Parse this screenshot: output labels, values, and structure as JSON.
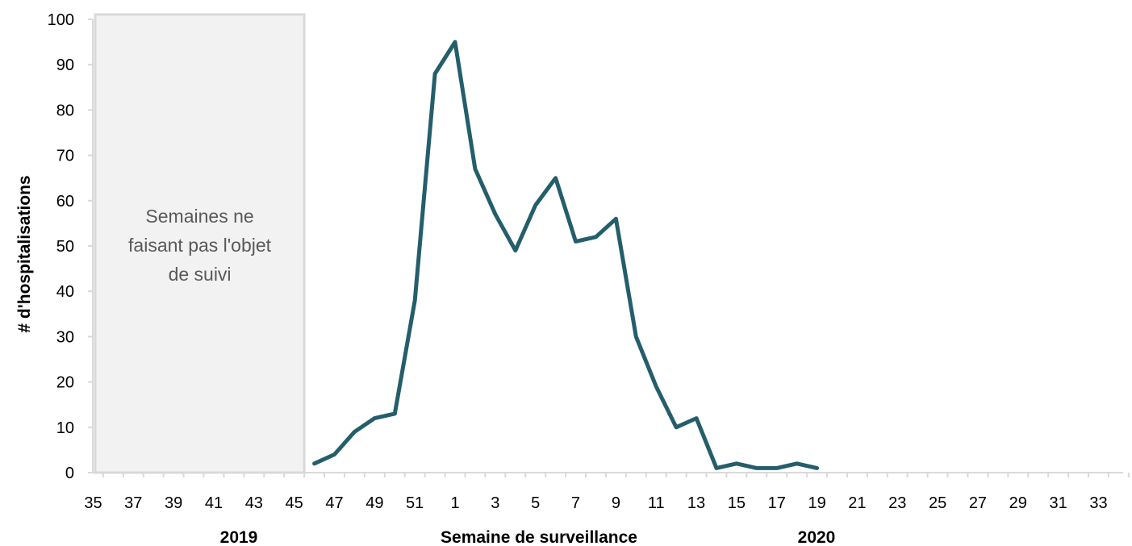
{
  "chart_data": {
    "type": "line",
    "title": "",
    "xlabel": "Semaine de surveillance",
    "ylabel": "# d'hospitalisations",
    "ylim": [
      0,
      100
    ],
    "yticks": [
      0,
      10,
      20,
      30,
      40,
      50,
      60,
      70,
      80,
      90,
      100
    ],
    "x_categories": [
      35,
      36,
      37,
      38,
      39,
      40,
      41,
      42,
      43,
      44,
      45,
      46,
      47,
      48,
      49,
      50,
      51,
      52,
      1,
      2,
      3,
      4,
      5,
      6,
      7,
      8,
      9,
      10,
      11,
      12,
      13,
      14,
      15,
      16,
      17,
      18,
      19,
      20,
      21,
      22,
      23,
      24,
      25,
      26,
      27,
      28,
      29,
      30,
      31,
      32,
      33,
      34
    ],
    "x_tick_labels": [
      "35",
      "37",
      "39",
      "41",
      "43",
      "45",
      "47",
      "49",
      "51",
      "1",
      "3",
      "5",
      "7",
      "9",
      "11",
      "13",
      "15",
      "17",
      "19",
      "21",
      "23",
      "25",
      "27",
      "29",
      "31",
      "33"
    ],
    "year_labels": [
      "2019",
      "2020"
    ],
    "shaded_region": {
      "from_week": 35,
      "to_week": 45,
      "label_lines": [
        "Semaines ne",
        "faisant pas l'objet",
        "de suivi"
      ],
      "fill": "#f2f2f2",
      "stroke": "#d9d9d9"
    },
    "line_color": "#255e6b",
    "grid": false,
    "legend": "none",
    "series": [
      {
        "x": [
          46,
          47,
          48,
          49,
          50,
          51,
          52,
          1,
          2,
          3,
          4,
          5,
          6,
          7,
          8,
          9,
          10,
          11,
          12,
          13,
          14,
          15,
          16,
          17,
          18,
          19
        ],
        "values": [
          2,
          4,
          9,
          12,
          13,
          38,
          88,
          95,
          67,
          57,
          49,
          59,
          65,
          51,
          52,
          56,
          30,
          19,
          10,
          12,
          1,
          2,
          1,
          1,
          2,
          1
        ]
      }
    ]
  }
}
